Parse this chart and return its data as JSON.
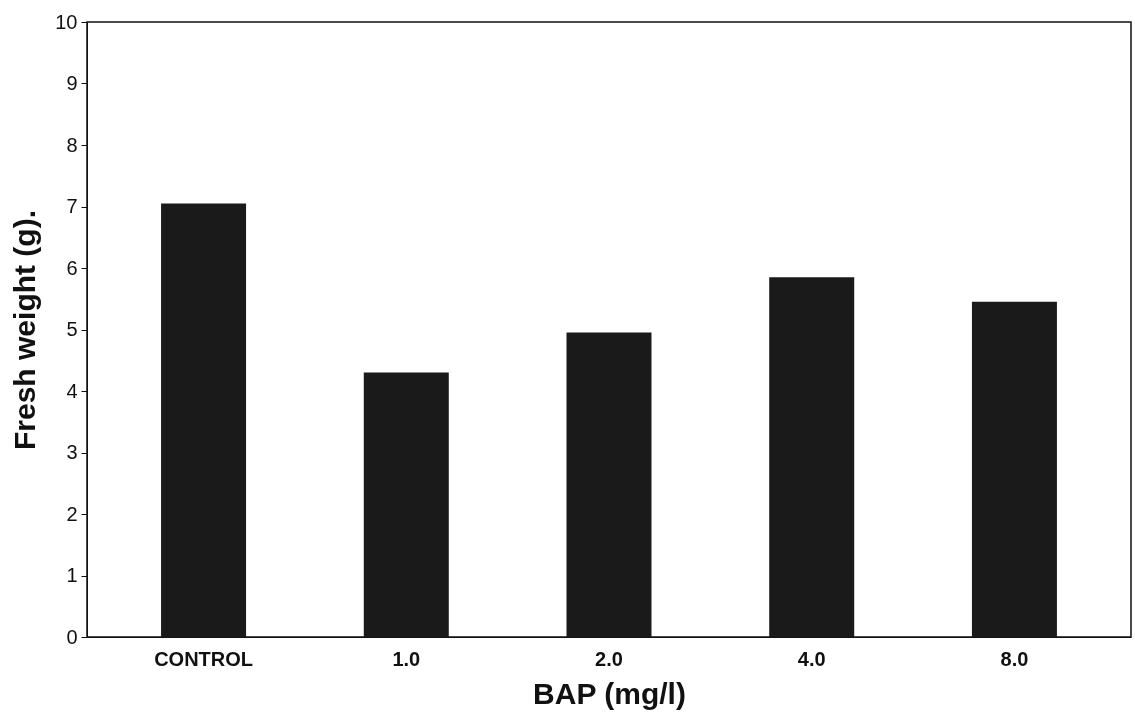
{
  "chart_data": {
    "type": "bar",
    "xlabel": "BAP (mg/l)",
    "ylabel": "Fresh weight (g).",
    "categories": [
      "CONTROL",
      "1.0",
      "2.0",
      "4.0",
      "8.0"
    ],
    "values": [
      7.05,
      4.3,
      4.95,
      5.85,
      5.45
    ],
    "color": "#1a1a1a",
    "ylim": [
      0,
      10
    ],
    "yticks": [
      0,
      1,
      2,
      3,
      4,
      5,
      6,
      7,
      8,
      9,
      10
    ],
    "grid": false
  }
}
